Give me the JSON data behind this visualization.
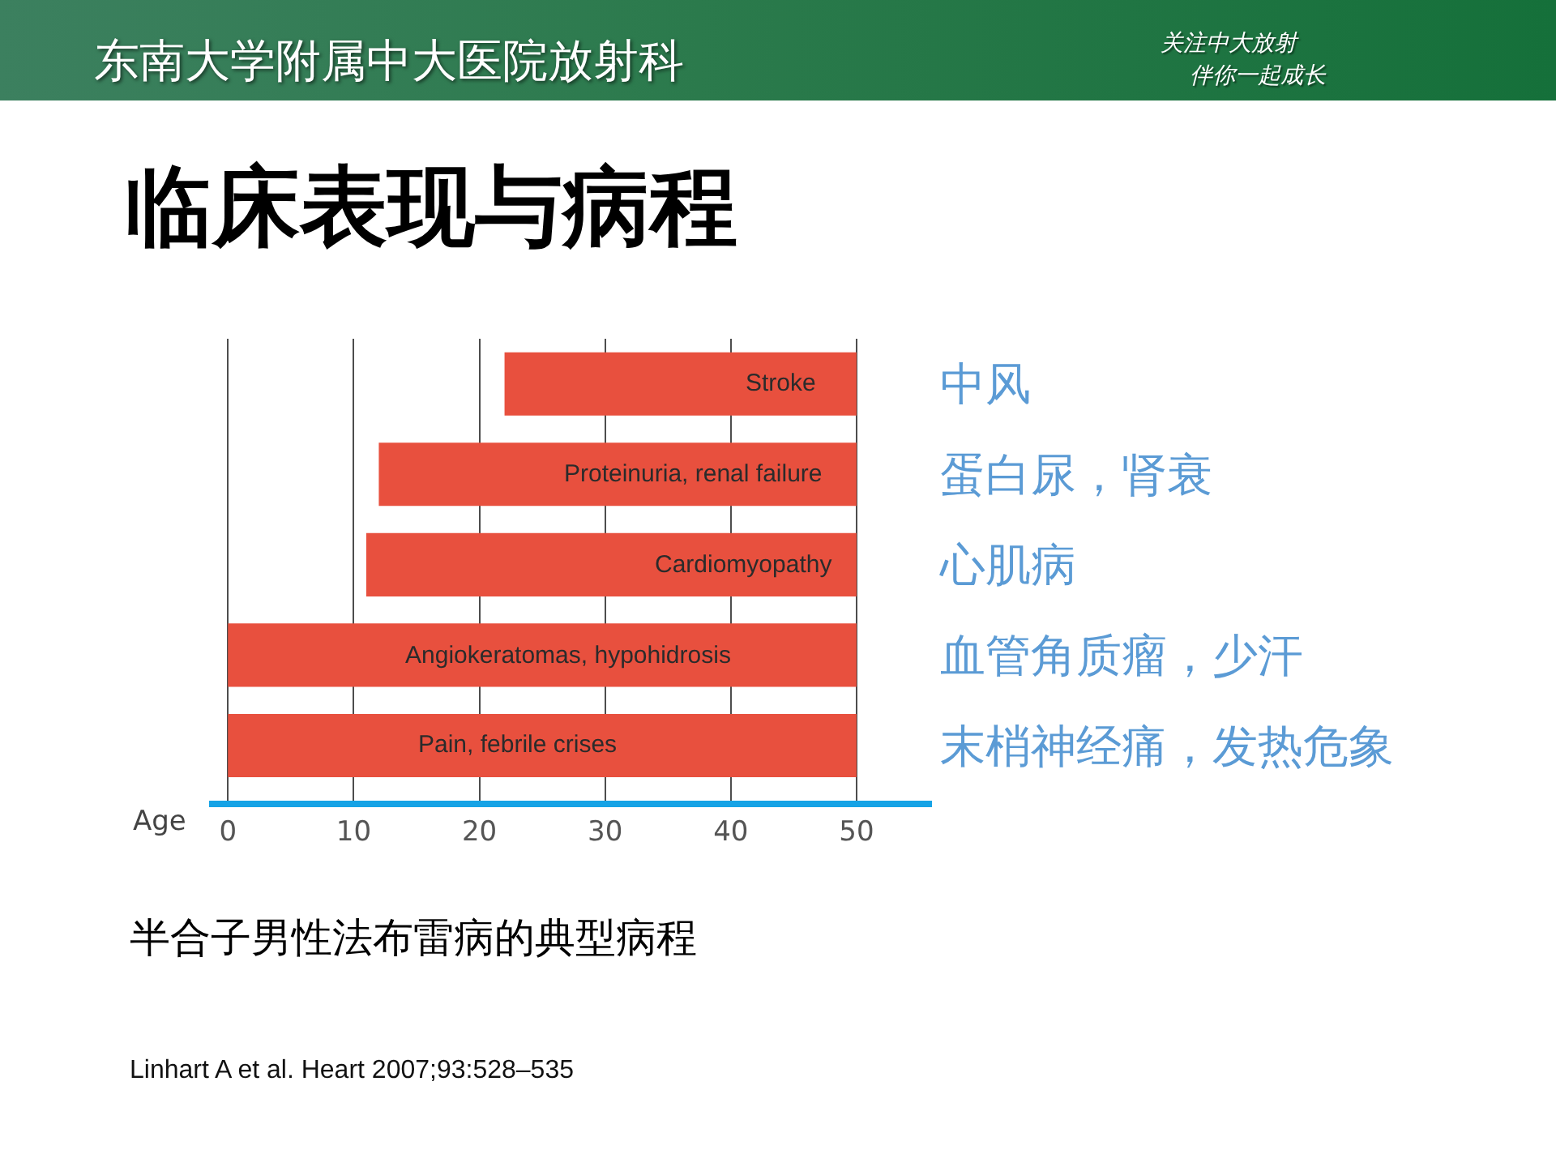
{
  "chart_data": {
    "type": "bar",
    "title": "临床表现与病程",
    "xlabel": "Age",
    "orientation": "horizontal",
    "categories": [
      "中风",
      "蛋白尿，肾衰",
      "心肌病",
      "血管角质瘤，少汗",
      "末梢神经痛，发热危象"
    ],
    "base": [
      22,
      12,
      11,
      0,
      0
    ],
    "values": [
      28,
      38,
      39,
      50,
      50
    ],
    "color": "#e8503e",
    "xlim": [
      -1.5,
      56
    ],
    "xticks": [
      0,
      10,
      20,
      30,
      40,
      50
    ],
    "grid": "x",
    "annotations": [
      {
        "text": "Stroke",
        "x": 44,
        "y": "中风"
      },
      {
        "text": "Proteinuria, renal failure",
        "x": 37,
        "y": "蛋白尿，肾衰"
      },
      {
        "text": "Cardiomyopathy",
        "x": 41,
        "y": "心肌病"
      },
      {
        "text": "Angiokeratomas, hypohidrosis",
        "x": 27,
        "y": "血管角质瘤，少汗"
      },
      {
        "text": "Pain, febrile crises",
        "x": 23,
        "y": "末梢神经痛，发热危象"
      },
      "东南大学附属中大医院放射科",
      "关注中大放射",
      "伴你一起成长",
      "半合子男性法布雷病的典型病程",
      "Linhart A et al. Heart 2007;93:528–535"
    ]
  }
}
